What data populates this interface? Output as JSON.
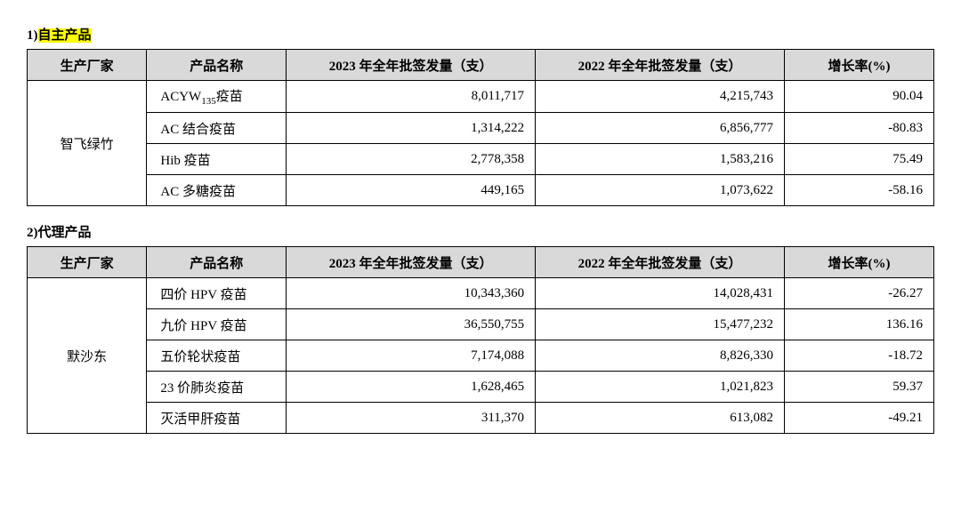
{
  "section1": {
    "label_prefix": "1)",
    "title": "自主产品",
    "headers": {
      "mfr": "生产厂家",
      "product": "产品名称",
      "y2023": "2023 年全年批签发量（支）",
      "y2022": "2022 年全年批签发量（支）",
      "rate": "增长率(%)"
    },
    "manufacturer": "智飞绿竹",
    "rows": [
      {
        "product_pre": "ACYW",
        "product_sub": "135",
        "product_post": "疫苗",
        "y2023": "8,011,717",
        "y2022": "4,215,743",
        "rate": "90.04"
      },
      {
        "product": "AC 结合疫苗",
        "y2023": "1,314,222",
        "y2022": "6,856,777",
        "rate": "-80.83"
      },
      {
        "product": "Hib 疫苗",
        "y2023": "2,778,358",
        "y2022": "1,583,216",
        "rate": "75.49"
      },
      {
        "product": "AC 多糖疫苗",
        "y2023": "449,165",
        "y2022": "1,073,622",
        "rate": "-58.16"
      }
    ]
  },
  "section2": {
    "label_prefix": "2)",
    "title": "代理产品",
    "headers": {
      "mfr": "生产厂家",
      "product": "产品名称",
      "y2023": "2023 年全年批签发量（支）",
      "y2022": "2022 年全年批签发量（支）",
      "rate": "增长率(%)"
    },
    "manufacturer": "默沙东",
    "rows": [
      {
        "product": "四价 HPV 疫苗",
        "y2023": "10,343,360",
        "y2022": "14,028,431",
        "rate": "-26.27"
      },
      {
        "product": "九价 HPV 疫苗",
        "y2023": "36,550,755",
        "y2022": "15,477,232",
        "rate": "136.16"
      },
      {
        "product": "五价轮状疫苗",
        "y2023": "7,174,088",
        "y2022": "8,826,330",
        "rate": "-18.72"
      },
      {
        "product": "23 价肺炎疫苗",
        "y2023": "1,628,465",
        "y2022": "1,021,823",
        "rate": "59.37"
      },
      {
        "product": "灭活甲肝疫苗",
        "y2023": "311,370",
        "y2022": "613,082",
        "rate": "-49.21"
      }
    ]
  }
}
